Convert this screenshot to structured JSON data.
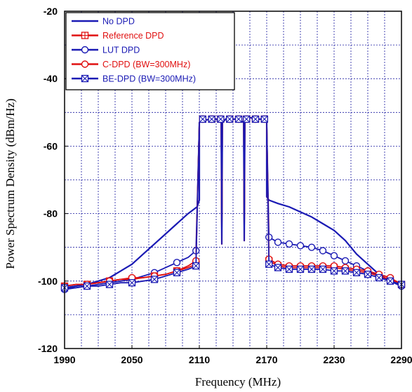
{
  "chart_data": {
    "type": "line",
    "title": "",
    "xlabel": "Frequency (MHz)",
    "ylabel": "Power Spectrum Density (dBm/Hz)",
    "xlim": [
      1990,
      2290
    ],
    "ylim": [
      -120,
      -20
    ],
    "xticks": [
      1990,
      2050,
      2110,
      2170,
      2230,
      2290
    ],
    "yticks": [
      -20,
      -40,
      -60,
      -80,
      -100,
      -120
    ],
    "xtick_labels": [
      "1990",
      "2050",
      "2110",
      "2170",
      "2230",
      "2290"
    ],
    "ytick_labels": [
      "-20",
      "-40",
      "-60",
      "-80",
      "-100",
      "-120"
    ],
    "x_grid_step": 15,
    "y_grid_step": 10,
    "legend_position": "top-left",
    "series": [
      {
        "name": "No DPD",
        "color": "#1a1ab4",
        "marker": "none",
        "x": [
          1990,
          2000,
          2010,
          2020,
          2030,
          2040,
          2050,
          2060,
          2070,
          2080,
          2090,
          2100,
          2108,
          2110,
          2170,
          2172,
          2180,
          2190,
          2200,
          2210,
          2220,
          2230,
          2240,
          2250,
          2260,
          2270,
          2280,
          2290
        ],
        "y": [
          -102,
          -101.5,
          -101,
          -100,
          -99,
          -97,
          -95,
          -92,
          -89,
          -86,
          -83,
          -80,
          -78,
          -76,
          -75,
          -76,
          -77,
          -78,
          -79.5,
          -81,
          -83,
          -85,
          -88,
          -92,
          -95,
          -98,
          -100,
          -101.5
        ]
      },
      {
        "name": "Reference DPD",
        "color": "#e01010",
        "marker": "square-plus",
        "x": [
          1990,
          2000,
          2010,
          2020,
          2030,
          2040,
          2050,
          2060,
          2070,
          2080,
          2090,
          2100,
          2107,
          2172,
          2180,
          2190,
          2200,
          2210,
          2220,
          2230,
          2240,
          2250,
          2260,
          2270,
          2280,
          2290
        ],
        "y": [
          -101.5,
          -101,
          -101,
          -100.5,
          -100,
          -99.5,
          -99.5,
          -99,
          -98.5,
          -98,
          -97,
          -96,
          -95,
          -94,
          -95.5,
          -96,
          -96,
          -96,
          -96,
          -96,
          -96.5,
          -97,
          -97.5,
          -98.5,
          -99.5,
          -101
        ]
      },
      {
        "name": "LUT DPD",
        "color": "#1a1ab4",
        "marker": "circle",
        "x": [
          1990,
          2000,
          2010,
          2020,
          2030,
          2040,
          2050,
          2060,
          2070,
          2080,
          2090,
          2100,
          2107,
          2172,
          2180,
          2190,
          2200,
          2210,
          2220,
          2230,
          2240,
          2250,
          2260,
          2270,
          2280,
          2290
        ],
        "y": [
          -102.5,
          -102,
          -101.5,
          -101,
          -100.5,
          -100,
          -99.5,
          -98.5,
          -97.5,
          -96,
          -94.5,
          -93,
          -91,
          -87,
          -88.5,
          -89,
          -89.5,
          -90,
          -91,
          -92.5,
          -94,
          -95.5,
          -97,
          -98.5,
          -100,
          -101.5
        ]
      },
      {
        "name": "C-DPD (BW=300MHz)",
        "color": "#e01010",
        "marker": "circle",
        "x": [
          1990,
          2000,
          2010,
          2020,
          2030,
          2040,
          2050,
          2060,
          2070,
          2080,
          2090,
          2100,
          2107,
          2172,
          2180,
          2190,
          2200,
          2210,
          2220,
          2230,
          2240,
          2250,
          2260,
          2270,
          2280,
          2290
        ],
        "y": [
          -101.5,
          -101,
          -101,
          -100.5,
          -100,
          -99.5,
          -99,
          -99,
          -98.5,
          -98,
          -97,
          -95.5,
          -94,
          -93.5,
          -95,
          -95.5,
          -95.5,
          -95.5,
          -95.5,
          -95.5,
          -96,
          -96.5,
          -97,
          -98,
          -99,
          -101
        ]
      },
      {
        "name": "BE-DPD (BW=300MHz)",
        "color": "#1a1ab4",
        "marker": "square-x",
        "x": [
          1990,
          2000,
          2010,
          2020,
          2030,
          2040,
          2050,
          2060,
          2070,
          2080,
          2090,
          2100,
          2107,
          2172,
          2180,
          2190,
          2200,
          2210,
          2220,
          2230,
          2240,
          2250,
          2260,
          2270,
          2280,
          2290
        ],
        "y": [
          -102,
          -102,
          -101.5,
          -101.5,
          -101,
          -100.5,
          -100.5,
          -100,
          -99.5,
          -98.5,
          -97.5,
          -96.5,
          -95.5,
          -95,
          -96,
          -96.5,
          -96.5,
          -96.5,
          -96.5,
          -97,
          -97,
          -97.5,
          -98,
          -99,
          -100,
          -101
        ]
      }
    ],
    "in_band": {
      "x": [
        2110,
        2112,
        2120,
        2125,
        2129.5,
        2130,
        2130.5,
        2135,
        2140,
        2145,
        2149.5,
        2150,
        2150.5,
        2155,
        2160,
        2165,
        2168,
        2170
      ],
      "y": [
        -53,
        -52.5,
        -52,
        -52,
        -53,
        -89,
        -53,
        -51.5,
        -52,
        -52,
        -53,
        -88,
        -53,
        -51.5,
        -52,
        -52,
        -52.5,
        -53
      ],
      "marker_x": [
        2113,
        2121,
        2129,
        2137,
        2145,
        2152,
        2160,
        2168
      ]
    }
  }
}
